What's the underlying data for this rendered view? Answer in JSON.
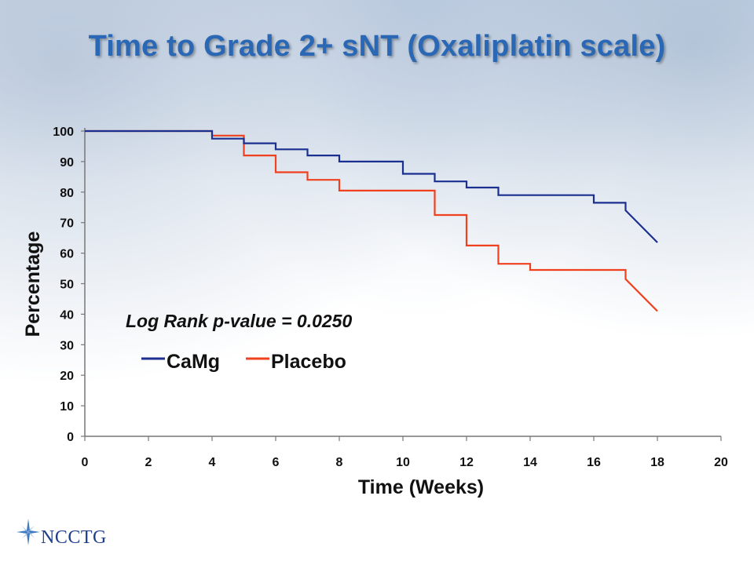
{
  "slide": {
    "title": "Time to Grade 2+ sNT (Oxaliplatin scale)",
    "logo_text": "NCCTG"
  },
  "colors": {
    "title": "#2a68b6",
    "camg": "#1a2f8f",
    "placebo": "#f0401e",
    "logo": "#1f3f8c"
  },
  "chart_data": {
    "type": "line",
    "step": true,
    "xlabel": "Time (Weeks)",
    "ylabel": "Percentage",
    "xlim": [
      0,
      20
    ],
    "ylim": [
      0,
      100
    ],
    "xticks": [
      0,
      2,
      4,
      6,
      8,
      10,
      12,
      14,
      16,
      18,
      20
    ],
    "yticks": [
      0,
      10,
      20,
      30,
      40,
      50,
      60,
      70,
      80,
      90,
      100
    ],
    "grid": false,
    "annotation": "Log Rank p-value = 0.0250",
    "legend_position": "inside-left",
    "series": [
      {
        "name": "CaMg",
        "color": "#1a2f8f",
        "points": [
          [
            0,
            100
          ],
          [
            4,
            100
          ],
          [
            4,
            97.5
          ],
          [
            5,
            97.5
          ],
          [
            5,
            96
          ],
          [
            6,
            96
          ],
          [
            6,
            94
          ],
          [
            7,
            94
          ],
          [
            7,
            92
          ],
          [
            8,
            92
          ],
          [
            8,
            90
          ],
          [
            10,
            90
          ],
          [
            10,
            86
          ],
          [
            11,
            86
          ],
          [
            11,
            83.5
          ],
          [
            12,
            83.5
          ],
          [
            12,
            81.5
          ],
          [
            13,
            81.5
          ],
          [
            13,
            79
          ],
          [
            16,
            79
          ],
          [
            16,
            76.5
          ],
          [
            17,
            76.5
          ],
          [
            17,
            74
          ],
          [
            18,
            63.5
          ]
        ]
      },
      {
        "name": "Placebo",
        "color": "#f0401e",
        "points": [
          [
            0,
            100
          ],
          [
            4,
            100
          ],
          [
            4,
            98.5
          ],
          [
            5,
            98.5
          ],
          [
            5,
            92
          ],
          [
            6,
            92
          ],
          [
            6,
            86.5
          ],
          [
            7,
            86.5
          ],
          [
            7,
            84
          ],
          [
            8,
            84
          ],
          [
            8,
            80.5
          ],
          [
            11,
            80.5
          ],
          [
            11,
            72.5
          ],
          [
            12,
            72.5
          ],
          [
            12,
            62.5
          ],
          [
            13,
            62.5
          ],
          [
            13,
            56.5
          ],
          [
            14,
            56.5
          ],
          [
            14,
            54.5
          ],
          [
            17,
            54.5
          ],
          [
            17,
            51.5
          ],
          [
            18,
            41
          ]
        ]
      }
    ]
  }
}
